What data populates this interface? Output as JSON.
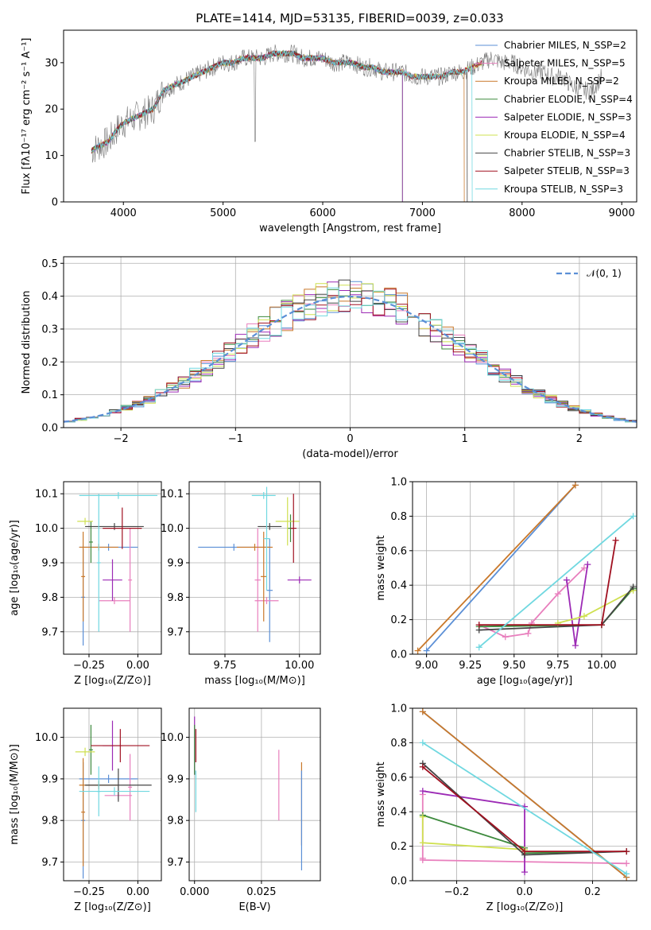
{
  "title": "PLATE=1414, MJD=53135, FIBERID=0039, z=0.033",
  "colors": {
    "Chabrier MILES": "#5b8fd6",
    "Salpeter MILES": "#e87fbd",
    "Kroupa MILES": "#c9782a",
    "Chabrier ELODIE": "#3d8a3d",
    "Salpeter ELODIE": "#9c2ab5",
    "Kroupa ELODIE": "#cfe050",
    "Chabrier STELIB": "#444444",
    "Salpeter STELIB": "#a01020",
    "Kroupa STELIB": "#70d8e0"
  },
  "chart_data": [
    {
      "type": "line",
      "name": "spectrum",
      "xlabel": "wavelength [Angstrom, rest frame]",
      "ylabel": "Flux [fλ10⁻¹⁷ erg cm⁻² s⁻¹ A⁻¹]",
      "xlim": [
        3400,
        9150
      ],
      "ylim": [
        0,
        37
      ],
      "xticks": [
        "4000",
        "5000",
        "6000",
        "7000",
        "8000",
        "9000"
      ],
      "yticks": [
        "0",
        "10",
        "20",
        "30"
      ],
      "legend": [
        "Chabrier MILES, N_SSP=2",
        "Salpeter MILES, N_SSP=5",
        "Kroupa MILES, N_SSP=2",
        "Chabrier ELODIE, N_SSP=4",
        "Salpeter ELODIE, N_SSP=3",
        "Kroupa ELODIE, N_SSP=4",
        "Chabrier STELIB, N_SSP=3",
        "Salpeter STELIB, N_SSP=3",
        "Kroupa STELIB, N_SSP=3"
      ],
      "data_x": [
        3680,
        3750,
        3850,
        3950,
        4000,
        4100,
        4200,
        4300,
        4400,
        4500,
        4600,
        4700,
        4800,
        4900,
        5000,
        5100,
        5200,
        5300,
        5400,
        5500,
        5600,
        5700,
        5800,
        5900,
        6000,
        6100,
        6200,
        6300,
        6400,
        6500,
        6600,
        6700,
        6800,
        6900,
        7000,
        7100,
        7200,
        7300,
        7400,
        7500,
        7600,
        7700,
        7800,
        7900,
        8000,
        8100,
        8200,
        8300,
        8400,
        8500,
        8600,
        8700,
        8800
      ],
      "data_y": [
        11,
        12,
        13,
        16,
        17,
        18,
        19,
        20,
        24,
        25,
        26,
        27,
        28,
        29,
        30,
        30,
        31,
        31,
        31,
        32,
        32,
        32,
        31,
        31,
        31,
        30,
        30,
        30,
        29,
        29,
        28,
        28,
        28,
        27,
        27,
        27,
        27,
        28,
        28,
        29,
        30,
        31,
        30,
        30,
        29,
        28,
        28,
        27,
        27,
        25,
        24,
        24,
        27
      ],
      "model_ends": {
        "Chabrier ELODIE": 6800,
        "Kroupa MILES": 7420,
        "Salpeter ELODIE": 6800,
        "Chabrier STELIB": 7450,
        "Kroupa STELIB": 7500
      }
    },
    {
      "type": "bar",
      "name": "residual histogram",
      "xlabel": "(data-model)/error",
      "ylabel": "Normed distribution",
      "xlim": [
        -2.5,
        2.5
      ],
      "ylim": [
        0,
        0.52
      ],
      "xticks": [
        "−2",
        "−1",
        "0",
        "1",
        "2"
      ],
      "yticks": [
        "0.0",
        "0.1",
        "0.2",
        "0.3",
        "0.4",
        "0.5"
      ],
      "legend": [
        "𝒩(0, 1)"
      ],
      "bin_width": 0.1
    },
    {
      "type": "scatter",
      "name": "age vs Z",
      "xlabel": "Z [log₁₀(Z/Z⊙)]",
      "ylabel": "age  [log₁₀(age/yr)]",
      "xlim": [
        -0.38,
        0.12
      ],
      "ylim": [
        9.635,
        10.135
      ],
      "xticks": [
        "−0.25",
        "0.00"
      ],
      "yticks": [
        "9.7",
        "9.8",
        "9.9",
        "10.0",
        "10.1"
      ],
      "points": [
        {
          "series": "Chabrier MILES",
          "x": -0.15,
          "y": 9.945,
          "xerr": 0.15,
          "yerr": 0.01
        },
        {
          "series": "Chabrier MILES",
          "x": -0.28,
          "y": 9.8,
          "xerr": 0.01,
          "yerr": 0.14
        },
        {
          "series": "Salpeter MILES",
          "x": -0.12,
          "y": 9.79,
          "xerr": 0.08,
          "yerr": 0.01
        },
        {
          "series": "Salpeter MILES",
          "x": -0.04,
          "y": 9.85,
          "xerr": 0.01,
          "yerr": 0.15
        },
        {
          "series": "Kroupa MILES",
          "x": -0.2,
          "y": 9.945,
          "xerr": 0.1,
          "yerr": 0.01
        },
        {
          "series": "Kroupa MILES",
          "x": -0.28,
          "y": 9.86,
          "xerr": 0.01,
          "yerr": 0.13
        },
        {
          "series": "Chabrier ELODIE",
          "x": -0.24,
          "y": 9.96,
          "xerr": 0.01,
          "yerr": 0.06
        },
        {
          "series": "Salpeter ELODIE",
          "x": -0.13,
          "y": 9.85,
          "xerr": 0.05,
          "yerr": 0.06
        },
        {
          "series": "Kroupa ELODIE",
          "x": -0.27,
          "y": 10.02,
          "xerr": 0.04,
          "yerr": 0.01
        },
        {
          "series": "Chabrier STELIB",
          "x": -0.12,
          "y": 10.005,
          "xerr": 0.15,
          "yerr": 0.01
        },
        {
          "series": "Salpeter STELIB",
          "x": -0.08,
          "y": 10.0,
          "xerr": 0.1,
          "yerr": 0.06
        },
        {
          "series": "Kroupa STELIB",
          "x": -0.1,
          "y": 10.095,
          "xerr": 0.2,
          "yerr": 0.01
        },
        {
          "series": "Kroupa STELIB",
          "x": -0.2,
          "y": 9.9,
          "xerr": 0.01,
          "yerr": 0.2
        }
      ]
    },
    {
      "type": "scatter",
      "name": "age vs mass",
      "xlabel": "mass [log₁₀(M/M⊙)]",
      "ylabel": "",
      "xlim": [
        9.63,
        10.07
      ],
      "ylim": [
        9.635,
        10.135
      ],
      "xticks": [
        "9.75",
        "10.00"
      ],
      "yticks": [
        "9.7",
        "9.8",
        "9.9",
        "10.0",
        "10.1"
      ],
      "points": [
        {
          "series": "Chabrier MILES",
          "x": 9.78,
          "y": 9.945,
          "xerr": 0.12,
          "yerr": 0.01
        },
        {
          "series": "Chabrier MILES",
          "x": 9.9,
          "y": 9.82,
          "xerr": 0.01,
          "yerr": 0.15
        },
        {
          "series": "Salpeter MILES",
          "x": 9.89,
          "y": 9.79,
          "xerr": 0.04,
          "yerr": 0.01
        },
        {
          "series": "Salpeter MILES",
          "x": 9.86,
          "y": 9.85,
          "xerr": 0.01,
          "yerr": 0.15
        },
        {
          "series": "Kroupa MILES",
          "x": 9.85,
          "y": 9.945,
          "xerr": 0.06,
          "yerr": 0.01
        },
        {
          "series": "Kroupa MILES",
          "x": 9.88,
          "y": 9.86,
          "xerr": 0.01,
          "yerr": 0.13
        },
        {
          "series": "Chabrier ELODIE",
          "x": 9.97,
          "y": 10.0,
          "xerr": 0.01,
          "yerr": 0.04
        },
        {
          "series": "Salpeter ELODIE",
          "x": 10.0,
          "y": 9.85,
          "xerr": 0.04,
          "yerr": 0.01
        },
        {
          "series": "Kroupa ELODIE",
          "x": 9.96,
          "y": 10.02,
          "xerr": 0.04,
          "yerr": 0.07
        },
        {
          "series": "Chabrier STELIB",
          "x": 9.9,
          "y": 10.005,
          "xerr": 0.04,
          "yerr": 0.01
        },
        {
          "series": "Salpeter STELIB",
          "x": 9.98,
          "y": 10.0,
          "xerr": 0.01,
          "yerr": 0.1
        },
        {
          "series": "Kroupa STELIB",
          "x": 9.88,
          "y": 10.095,
          "xerr": 0.04,
          "yerr": 0.01
        },
        {
          "series": "Kroupa STELIB",
          "x": 9.89,
          "y": 9.97,
          "xerr": 0.01,
          "yerr": 0.15
        }
      ]
    },
    {
      "type": "line",
      "name": "mass weight vs age",
      "xlabel": "age  [log₁₀(age/yr)]",
      "ylabel": "mass weight",
      "xlim": [
        8.92,
        10.2
      ],
      "ylim": [
        0,
        1
      ],
      "xticks": [
        "9.00",
        "9.25",
        "9.50",
        "9.75",
        "10.00"
      ],
      "yticks": [
        "0.0",
        "0.2",
        "0.4",
        "0.6",
        "0.8",
        "1.0"
      ],
      "series": [
        {
          "name": "Chabrier MILES",
          "x": [
            9.0,
            9.85
          ],
          "y": [
            0.02,
            0.98
          ]
        },
        {
          "name": "Salpeter MILES",
          "x": [
            9.3,
            9.45,
            9.58,
            9.6,
            9.75,
            9.9
          ],
          "y": [
            0.17,
            0.1,
            0.12,
            0.18,
            0.35,
            0.5
          ]
        },
        {
          "name": "Kroupa MILES",
          "x": [
            8.95,
            9.85
          ],
          "y": [
            0.02,
            0.98
          ]
        },
        {
          "name": "Chabrier ELODIE",
          "x": [
            9.3,
            10.0,
            10.18
          ],
          "y": [
            0.16,
            0.17,
            0.38
          ]
        },
        {
          "name": "Salpeter ELODIE",
          "x": [
            9.8,
            9.85,
            9.92
          ],
          "y": [
            0.43,
            0.05,
            0.52
          ]
        },
        {
          "name": "Kroupa ELODIE",
          "x": [
            9.75,
            9.9,
            10.18
          ],
          "y": [
            0.18,
            0.22,
            0.37
          ]
        },
        {
          "name": "Chabrier STELIB",
          "x": [
            9.3,
            10.0,
            10.18
          ],
          "y": [
            0.14,
            0.17,
            0.39
          ]
        },
        {
          "name": "Salpeter STELIB",
          "x": [
            9.3,
            10.0,
            10.08
          ],
          "y": [
            0.17,
            0.17,
            0.66
          ]
        },
        {
          "name": "Kroupa STELIB",
          "x": [
            9.3,
            10.18
          ],
          "y": [
            0.04,
            0.8
          ]
        }
      ]
    },
    {
      "type": "scatter",
      "name": "mass vs Z",
      "xlabel": "Z [log₁₀(Z/Z⊙)]",
      "ylabel": "mass [log₁₀(M/M⊙)]",
      "xlim": [
        -0.38,
        0.12
      ],
      "ylim": [
        9.655,
        10.07
      ],
      "xticks": [
        "−0.25",
        "0.00"
      ],
      "yticks": [
        "9.7",
        "9.8",
        "9.9",
        "10.0"
      ],
      "points": [
        {
          "series": "Chabrier MILES",
          "x": -0.15,
          "y": 9.9,
          "xerr": 0.15,
          "yerr": 0.01
        },
        {
          "series": "Chabrier MILES",
          "x": -0.28,
          "y": 9.8,
          "xerr": 0.01,
          "yerr": 0.14
        },
        {
          "series": "Salpeter MILES",
          "x": -0.1,
          "y": 9.86,
          "xerr": 0.07,
          "yerr": 0.01
        },
        {
          "series": "Salpeter MILES",
          "x": -0.04,
          "y": 9.88,
          "xerr": 0.01,
          "yerr": 0.08
        },
        {
          "series": "Kroupa MILES",
          "x": -0.2,
          "y": 9.885,
          "xerr": 0.1,
          "yerr": 0.01
        },
        {
          "series": "Kroupa MILES",
          "x": -0.28,
          "y": 9.82,
          "xerr": 0.01,
          "yerr": 0.13
        },
        {
          "series": "Chabrier ELODIE",
          "x": -0.24,
          "y": 9.97,
          "xerr": 0.01,
          "yerr": 0.06
        },
        {
          "series": "Salpeter ELODIE",
          "x": -0.13,
          "y": 9.98,
          "xerr": 0.05,
          "yerr": 0.06
        },
        {
          "series": "Kroupa ELODIE",
          "x": -0.27,
          "y": 9.965,
          "xerr": 0.05,
          "yerr": 0.01
        },
        {
          "series": "Chabrier STELIB",
          "x": -0.1,
          "y": 9.885,
          "xerr": 0.17,
          "yerr": 0.04
        },
        {
          "series": "Salpeter STELIB",
          "x": -0.09,
          "y": 9.98,
          "xerr": 0.15,
          "yerr": 0.04
        },
        {
          "series": "Kroupa STELIB",
          "x": -0.12,
          "y": 9.87,
          "xerr": 0.18,
          "yerr": 0.01
        },
        {
          "series": "Kroupa STELIB",
          "x": -0.2,
          "y": 9.87,
          "xerr": 0.01,
          "yerr": 0.06
        }
      ]
    },
    {
      "type": "scatter",
      "name": "mass vs E(B-V)",
      "xlabel": "E(B-V)",
      "ylabel": "",
      "xlim": [
        -0.002,
        0.047
      ],
      "ylim": [
        9.655,
        10.07
      ],
      "xticks": [
        "0.000",
        "0.025"
      ],
      "yticks": [
        "9.7",
        "9.8",
        "9.9",
        "10.0"
      ],
      "points": [
        {
          "series": "Salpeter ELODIE",
          "x": 0.0,
          "y": 9.98,
          "xerr": 0.0,
          "yerr": 0.07
        },
        {
          "series": "Chabrier ELODIE",
          "x": 0.0,
          "y": 9.97,
          "xerr": 0.0,
          "yerr": 0.06
        },
        {
          "series": "Salpeter STELIB",
          "x": 0.0005,
          "y": 9.98,
          "xerr": 0.0,
          "yerr": 0.04
        },
        {
          "series": "Kroupa STELIB",
          "x": 0.0005,
          "y": 9.87,
          "xerr": 0.0,
          "yerr": 0.05
        },
        {
          "series": "Salpeter MILES",
          "x": 0.0315,
          "y": 9.885,
          "xerr": 0.0,
          "yerr": 0.085
        },
        {
          "series": "Kroupa MILES",
          "x": 0.04,
          "y": 9.84,
          "xerr": 0.0,
          "yerr": 0.1
        },
        {
          "series": "Chabrier MILES",
          "x": 0.04,
          "y": 9.8,
          "xerr": 0.0,
          "yerr": 0.12
        }
      ]
    },
    {
      "type": "line",
      "name": "mass weight vs Z",
      "xlabel": "Z [log₁₀(Z/Z⊙)]",
      "ylabel": "mass weight",
      "xlim": [
        -0.33,
        0.33
      ],
      "ylim": [
        0,
        1
      ],
      "xticks": [
        "−0.2",
        "0.0",
        "0.2"
      ],
      "yticks": [
        "0.0",
        "0.2",
        "0.4",
        "0.6",
        "0.8",
        "1.0"
      ],
      "series": [
        {
          "name": "Chabrier MILES",
          "x": [
            -0.3,
            0.3
          ],
          "y": [
            0.98,
            0.02
          ]
        },
        {
          "name": "Salpeter MILES",
          "x": [
            -0.3,
            -0.3,
            -0.3,
            0.3
          ],
          "y": [
            0.5,
            0.13,
            0.12,
            0.1
          ]
        },
        {
          "name": "Kroupa MILES",
          "x": [
            -0.3,
            0.3
          ],
          "y": [
            0.98,
            0.02
          ]
        },
        {
          "name": "Chabrier ELODIE",
          "x": [
            -0.3,
            0.0,
            0.0,
            0.3
          ],
          "y": [
            0.38,
            0.19,
            0.16,
            0.17
          ]
        },
        {
          "name": "Salpeter ELODIE",
          "x": [
            -0.3,
            0.0,
            0.0
          ],
          "y": [
            0.52,
            0.43,
            0.05
          ]
        },
        {
          "name": "Kroupa ELODIE",
          "x": [
            -0.3,
            -0.3,
            0.0,
            0.0
          ],
          "y": [
            0.37,
            0.22,
            0.18,
            0.17
          ]
        },
        {
          "name": "Chabrier STELIB",
          "x": [
            -0.3,
            0.0,
            0.3
          ],
          "y": [
            0.68,
            0.15,
            0.17
          ]
        },
        {
          "name": "Salpeter STELIB",
          "x": [
            -0.3,
            0.0,
            0.3
          ],
          "y": [
            0.66,
            0.17,
            0.17
          ]
        },
        {
          "name": "Kroupa STELIB",
          "x": [
            -0.3,
            0.3
          ],
          "y": [
            0.8,
            0.04
          ]
        }
      ]
    }
  ]
}
